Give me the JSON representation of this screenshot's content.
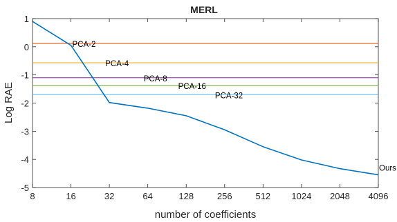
{
  "chart_data": {
    "type": "line",
    "title": "MERL",
    "xlabel": "number of coefficients",
    "ylabel": "Log RAE",
    "x_ticks": [
      "8",
      "16",
      "32",
      "64",
      "128",
      "256",
      "512",
      "1024",
      "2048",
      "4096"
    ],
    "y_ticks": [
      "1",
      "0",
      "-1",
      "-2",
      "-3",
      "-4",
      "-5"
    ],
    "ylim": [
      -5,
      1
    ],
    "x_scale": "log2",
    "xlim": [
      8,
      4096
    ],
    "grid": false,
    "series": [
      {
        "name": "Ours",
        "color": "#0072BD",
        "x": [
          8,
          16,
          32,
          64,
          128,
          256,
          512,
          1024,
          2048,
          4096
        ],
        "y": [
          0.9,
          0.05,
          -1.98,
          -2.18,
          -2.45,
          -2.95,
          -3.55,
          -4.02,
          -4.33,
          -4.55
        ]
      }
    ],
    "reference_lines": [
      {
        "label": "PCA-2",
        "y": 0.12,
        "color": "#D95319",
        "label_x": 16
      },
      {
        "label": "PCA-4",
        "y": -0.57,
        "color": "#EDB120",
        "label_x": 29
      },
      {
        "label": "PCA-8",
        "y": -1.1,
        "color": "#7E2F8E",
        "label_x": 58
      },
      {
        "label": "PCA-16",
        "y": -1.38,
        "color": "#77AC30",
        "label_x": 108
      },
      {
        "label": "PCA-32",
        "y": -1.7,
        "color": "#4DBEEE",
        "label_x": 210
      }
    ]
  }
}
